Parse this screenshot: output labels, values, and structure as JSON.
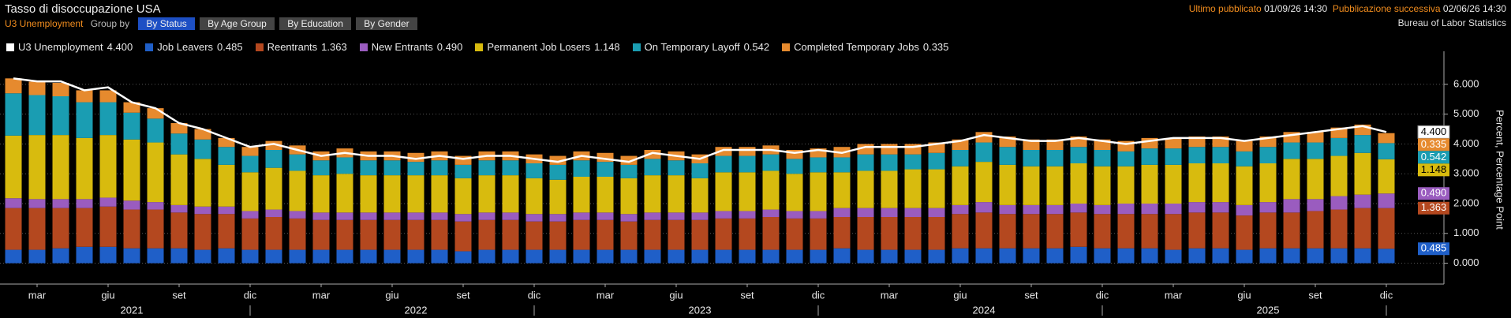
{
  "header": {
    "title": "Tasso di disoccupazione USA",
    "subtitle": "U3 Unemployment",
    "group_by": "Group by",
    "buttons": [
      "By Status",
      "By Age Group",
      "By Education",
      "By Gender"
    ],
    "last_published_label": "Ultimo pubblicato",
    "last_published": "01/09/26 14:30",
    "next_label": "Pubblicazione successiva",
    "next": "02/06/26 14:30",
    "source": "Bureau of Labor Statistics"
  },
  "chart_data": {
    "type": "bar",
    "stacked": true,
    "y_label": "Percent, Percentage Point",
    "grid": true,
    "categories": [
      "2021-02",
      "2021-03",
      "2021-04",
      "2021-05",
      "2021-06",
      "2021-07",
      "2021-08",
      "2021-09",
      "2021-10",
      "2021-11",
      "2021-12",
      "2022-01",
      "2022-02",
      "2022-03",
      "2022-04",
      "2022-05",
      "2022-06",
      "2022-07",
      "2022-08",
      "2022-09",
      "2022-10",
      "2022-11",
      "2022-12",
      "2023-01",
      "2023-02",
      "2023-03",
      "2023-04",
      "2023-05",
      "2023-06",
      "2023-07",
      "2023-08",
      "2023-09",
      "2023-10",
      "2023-11",
      "2023-12",
      "2024-01",
      "2024-02",
      "2024-03",
      "2024-04",
      "2024-05",
      "2024-06",
      "2024-07",
      "2024-08",
      "2024-09",
      "2024-10",
      "2024-11",
      "2024-12",
      "2025-01",
      "2025-02",
      "2025-03",
      "2025-04",
      "2025-05",
      "2025-06",
      "2025-07",
      "2025-08",
      "2025-09",
      "2025-10",
      "2025-11",
      "2025-12"
    ],
    "xticks": [
      {
        "value": "2021-03",
        "label": "mar"
      },
      {
        "value": "2021-06",
        "label": "giu"
      },
      {
        "value": "2021-09",
        "label": "set"
      },
      {
        "value": "2021-12",
        "label": "dic"
      },
      {
        "value": "2022-03",
        "label": "mar"
      },
      {
        "value": "2022-06",
        "label": "giu"
      },
      {
        "value": "2022-09",
        "label": "set"
      },
      {
        "value": "2022-12",
        "label": "dic"
      },
      {
        "value": "2023-03",
        "label": "mar"
      },
      {
        "value": "2023-06",
        "label": "giu"
      },
      {
        "value": "2023-09",
        "label": "set"
      },
      {
        "value": "2023-12",
        "label": "dic"
      },
      {
        "value": "2024-03",
        "label": "mar"
      },
      {
        "value": "2024-06",
        "label": "giu"
      },
      {
        "value": "2024-09",
        "label": "set"
      },
      {
        "value": "2024-12",
        "label": "dic"
      },
      {
        "value": "2025-03",
        "label": "mar"
      },
      {
        "value": "2025-06",
        "label": "giu"
      },
      {
        "value": "2025-09",
        "label": "set"
      },
      {
        "value": "2025-12",
        "label": "dic"
      }
    ],
    "year_ticks": [
      {
        "value": "2021-07",
        "label": "2021"
      },
      {
        "value": "2022-07",
        "label": "2022"
      },
      {
        "value": "2023-07",
        "label": "2023"
      },
      {
        "value": "2024-07",
        "label": "2024"
      },
      {
        "value": "2025-07",
        "label": "2025"
      }
    ],
    "ylim": [
      -0.7,
      6.95
    ],
    "yticks": [
      {
        "value": 0,
        "label": "0.000"
      },
      {
        "value": 1,
        "label": "1.000"
      },
      {
        "value": 2,
        "label": "2.000"
      },
      {
        "value": 3,
        "label": "3.000"
      },
      {
        "value": 4,
        "label": "4.000"
      },
      {
        "value": 5,
        "label": "5.000"
      },
      {
        "value": 6,
        "label": "6.000"
      }
    ],
    "series": [
      {
        "name": "U3 Unemployment",
        "type": "line",
        "color": "#ffffff",
        "last_label": "4.400",
        "values": [
          6.2,
          6.1,
          6.1,
          5.8,
          5.9,
          5.4,
          5.2,
          4.7,
          4.5,
          4.2,
          3.9,
          4.0,
          3.8,
          3.6,
          3.7,
          3.6,
          3.6,
          3.5,
          3.6,
          3.5,
          3.6,
          3.6,
          3.5,
          3.4,
          3.6,
          3.5,
          3.4,
          3.7,
          3.6,
          3.5,
          3.8,
          3.8,
          3.8,
          3.7,
          3.8,
          3.7,
          3.9,
          3.9,
          3.9,
          4.0,
          4.1,
          4.3,
          4.2,
          4.1,
          4.1,
          4.2,
          4.1,
          4.0,
          4.1,
          4.2,
          4.2,
          4.2,
          4.1,
          4.2,
          4.3,
          4.4,
          4.5,
          4.6,
          4.4
        ]
      },
      {
        "name": "Job Leavers",
        "color": "#1f5fc8",
        "last_label": "0.485",
        "values": [
          0.45,
          0.45,
          0.5,
          0.55,
          0.55,
          0.5,
          0.5,
          0.5,
          0.45,
          0.5,
          0.45,
          0.45,
          0.45,
          0.45,
          0.45,
          0.45,
          0.45,
          0.45,
          0.45,
          0.4,
          0.45,
          0.45,
          0.45,
          0.45,
          0.45,
          0.45,
          0.45,
          0.45,
          0.45,
          0.45,
          0.45,
          0.45,
          0.45,
          0.45,
          0.45,
          0.5,
          0.45,
          0.45,
          0.45,
          0.45,
          0.5,
          0.5,
          0.5,
          0.5,
          0.5,
          0.55,
          0.5,
          0.5,
          0.5,
          0.45,
          0.5,
          0.5,
          0.45,
          0.5,
          0.5,
          0.5,
          0.5,
          0.5,
          0.485
        ]
      },
      {
        "name": "Reentrants",
        "color": "#b4481f",
        "last_label": "1.363",
        "values": [
          1.4,
          1.4,
          1.35,
          1.3,
          1.35,
          1.3,
          1.3,
          1.2,
          1.2,
          1.15,
          1.05,
          1.1,
          1.05,
          1.0,
          1.0,
          1.0,
          1.0,
          1.0,
          1.0,
          1.0,
          1.0,
          1.0,
          0.95,
          0.95,
          1.0,
          1.0,
          0.95,
          1.0,
          1.0,
          1.0,
          1.05,
          1.05,
          1.1,
          1.05,
          1.05,
          1.05,
          1.1,
          1.1,
          1.1,
          1.1,
          1.15,
          1.2,
          1.15,
          1.15,
          1.15,
          1.15,
          1.15,
          1.15,
          1.15,
          1.2,
          1.2,
          1.2,
          1.15,
          1.2,
          1.2,
          1.25,
          1.3,
          1.35,
          1.363
        ]
      },
      {
        "name": "New Entrants",
        "color": "#9a5cbf",
        "last_label": "0.490",
        "values": [
          0.33,
          0.3,
          0.3,
          0.3,
          0.3,
          0.3,
          0.25,
          0.25,
          0.25,
          0.25,
          0.25,
          0.25,
          0.25,
          0.25,
          0.25,
          0.25,
          0.25,
          0.25,
          0.25,
          0.25,
          0.25,
          0.25,
          0.25,
          0.25,
          0.25,
          0.25,
          0.25,
          0.25,
          0.25,
          0.25,
          0.25,
          0.25,
          0.25,
          0.25,
          0.25,
          0.3,
          0.3,
          0.3,
          0.3,
          0.3,
          0.3,
          0.35,
          0.3,
          0.3,
          0.3,
          0.3,
          0.3,
          0.35,
          0.35,
          0.35,
          0.35,
          0.35,
          0.35,
          0.35,
          0.45,
          0.4,
          0.45,
          0.45,
          0.49
        ]
      },
      {
        "name": "Permanent Job Losers",
        "color": "#d8bb0e",
        "last_label": "1.148",
        "values": [
          2.1,
          2.15,
          2.15,
          2.05,
          2.1,
          2.05,
          2.0,
          1.7,
          1.6,
          1.4,
          1.3,
          1.4,
          1.35,
          1.25,
          1.3,
          1.25,
          1.25,
          1.25,
          1.25,
          1.2,
          1.25,
          1.25,
          1.2,
          1.15,
          1.2,
          1.2,
          1.2,
          1.25,
          1.25,
          1.15,
          1.3,
          1.3,
          1.3,
          1.25,
          1.3,
          1.2,
          1.25,
          1.25,
          1.3,
          1.3,
          1.3,
          1.35,
          1.35,
          1.3,
          1.3,
          1.35,
          1.3,
          1.25,
          1.3,
          1.3,
          1.3,
          1.3,
          1.3,
          1.3,
          1.35,
          1.35,
          1.35,
          1.4,
          1.148
        ]
      },
      {
        "name": "On Temporary Layoff",
        "color": "#1a9db2",
        "last_label": "0.542",
        "values": [
          1.42,
          1.34,
          1.3,
          1.2,
          1.1,
          0.9,
          0.8,
          0.7,
          0.65,
          0.6,
          0.55,
          0.6,
          0.55,
          0.5,
          0.55,
          0.5,
          0.5,
          0.45,
          0.5,
          0.45,
          0.5,
          0.5,
          0.5,
          0.5,
          0.55,
          0.5,
          0.45,
          0.55,
          0.5,
          0.5,
          0.55,
          0.55,
          0.55,
          0.5,
          0.5,
          0.5,
          0.55,
          0.55,
          0.5,
          0.55,
          0.55,
          0.65,
          0.6,
          0.55,
          0.55,
          0.55,
          0.55,
          0.5,
          0.55,
          0.55,
          0.55,
          0.55,
          0.5,
          0.55,
          0.55,
          0.55,
          0.6,
          0.6,
          0.542
        ]
      },
      {
        "name": "Completed Temporary Jobs",
        "color": "#e68a2e",
        "last_label": "0.335",
        "values": [
          0.5,
          0.45,
          0.45,
          0.4,
          0.4,
          0.35,
          0.35,
          0.35,
          0.35,
          0.3,
          0.3,
          0.3,
          0.3,
          0.3,
          0.3,
          0.3,
          0.3,
          0.3,
          0.3,
          0.3,
          0.3,
          0.3,
          0.3,
          0.3,
          0.3,
          0.3,
          0.3,
          0.3,
          0.3,
          0.3,
          0.3,
          0.3,
          0.3,
          0.3,
          0.3,
          0.35,
          0.35,
          0.35,
          0.35,
          0.35,
          0.35,
          0.35,
          0.35,
          0.35,
          0.35,
          0.35,
          0.35,
          0.35,
          0.35,
          0.35,
          0.35,
          0.35,
          0.35,
          0.35,
          0.35,
          0.35,
          0.35,
          0.35,
          0.335
        ]
      }
    ]
  }
}
